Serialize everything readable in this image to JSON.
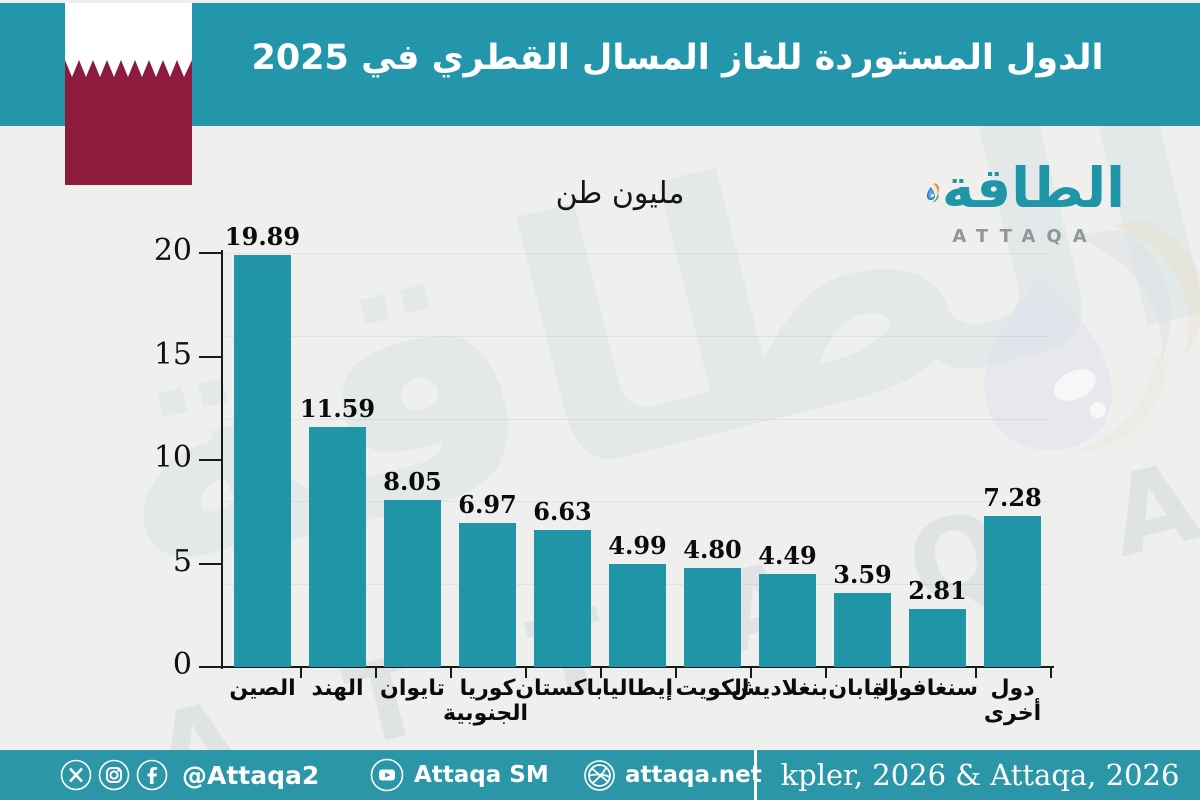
{
  "header": {
    "title": "الدول المستوردة للغاز المسال القطري في 2025"
  },
  "flag": {
    "country": "Qatar",
    "maroon": "#8d1b3d",
    "white": "#ffffff"
  },
  "subtitle": "مليون طن",
  "logo": {
    "arabic": "الطاقة",
    "latin": "ATTAQA",
    "accent": "#2095a8"
  },
  "watermark": {
    "arabic": "الطاقة",
    "latin": "A T T A Q A"
  },
  "chart_data": {
    "type": "bar",
    "title": "الدول المستوردة للغاز المسال القطري في 2025",
    "unit_label": "مليون طن",
    "categories": [
      "الصين",
      "الهند",
      "تايوان",
      "كوريا الجنوبية",
      "باكستان",
      "إيطاليا",
      "الكويت",
      "بنغلاديش",
      "اليابان",
      "سنغافورة",
      "دول أخرى"
    ],
    "values": [
      19.89,
      11.59,
      8.05,
      6.97,
      6.63,
      4.99,
      4.8,
      4.49,
      3.59,
      2.81,
      7.28
    ],
    "value_label_decimals": 2,
    "ylim": [
      0,
      20
    ],
    "yticks": [
      0,
      5,
      10,
      15,
      20
    ],
    "gridlines": [
      4,
      8,
      12,
      16,
      20
    ],
    "bar_color": "#2095a8",
    "legend": "none",
    "grid": "faint-horizontal"
  },
  "footer": {
    "social_icons": [
      "x-icon",
      "instagram-icon",
      "facebook-icon"
    ],
    "social_handle": "@Attaqa2",
    "youtube_icon": "youtube-icon",
    "youtube_handle": "Attaqa SM",
    "website_icon": "globe-icon",
    "website": "attaqa.net",
    "source": "kpler, 2026 & Attaqa, 2026",
    "bar_color": "#2a96a8"
  }
}
